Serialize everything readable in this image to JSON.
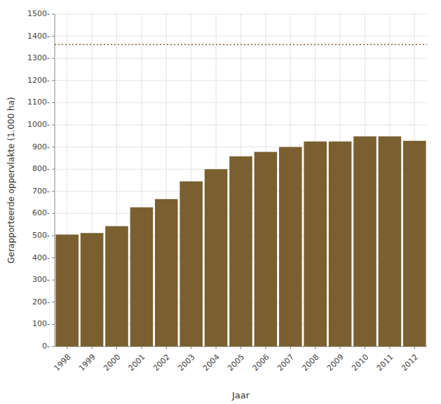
{
  "chart_data": {
    "type": "bar",
    "categories": [
      "1998",
      "1999",
      "2000",
      "2001",
      "2002",
      "2003",
      "2004",
      "2005",
      "2006",
      "2007",
      "2008",
      "2009",
      "2010",
      "2011",
      "2012"
    ],
    "values": [
      505,
      512,
      543,
      628,
      665,
      745,
      800,
      858,
      878,
      900,
      925,
      925,
      948,
      948,
      928
    ],
    "color": "#7a6030",
    "x_label": "Jaar",
    "y_label": "Gerapporteerde oppervlakte (1.000 ha)",
    "ylim": [
      0,
      1500
    ],
    "yticks": [
      {
        "value": 0,
        "label": "0-"
      },
      {
        "value": 100,
        "label": "100-"
      },
      {
        "value": 200,
        "label": "200-"
      },
      {
        "value": 300,
        "label": "300-"
      },
      {
        "value": 400,
        "label": "400-"
      },
      {
        "value": 500,
        "label": "500-"
      },
      {
        "value": 600,
        "label": "600-"
      },
      {
        "value": 700,
        "label": "700-"
      },
      {
        "value": 800,
        "label": "800-"
      },
      {
        "value": 900,
        "label": "900-"
      },
      {
        "value": 1000,
        "label": "1000-"
      },
      {
        "value": 1100,
        "label": "1100-"
      },
      {
        "value": 1200,
        "label": "1200-"
      },
      {
        "value": 1300,
        "label": "1300-"
      },
      {
        "value": 1400,
        "label": "1400-"
      },
      {
        "value": 1500,
        "label": "1500-"
      }
    ],
    "grid": true,
    "reference_line": {
      "y": 1362,
      "color": "#7a5c28",
      "line_style": "dotted"
    }
  }
}
